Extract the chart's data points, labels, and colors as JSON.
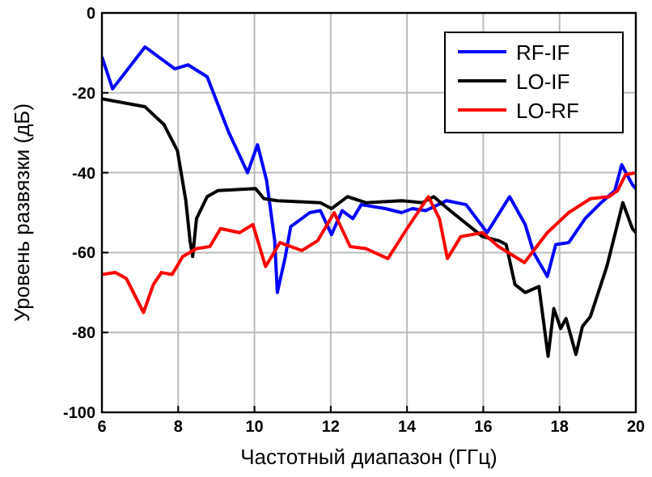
{
  "chart_data": {
    "type": "line",
    "xlabel": "Частотный диапазон (ГГц)",
    "ylabel": "Уровень развязки (дБ)",
    "xlim": [
      6,
      20
    ],
    "xticks": [
      6,
      8,
      10,
      12,
      14,
      16,
      18,
      20
    ],
    "ylim": [
      -100,
      0
    ],
    "yticks": [
      -100,
      -80,
      -60,
      -40,
      -20,
      0
    ],
    "grid": true,
    "legend": "top right",
    "series": [
      {
        "name": "RF-IF",
        "color": "#0000ff",
        "x": [
          6,
          6.28,
          7.13,
          7.91,
          8.26,
          8.76,
          9.33,
          9.82,
          10.08,
          10.32,
          10.53,
          10.6,
          10.81,
          10.95,
          11.45,
          11.73,
          12.02,
          12.3,
          12.58,
          12.8,
          13.43,
          13.86,
          14.14,
          14.49,
          15.04,
          15.55,
          16.1,
          16.69,
          17.1,
          17.32,
          17.68,
          17.9,
          18.24,
          18.67,
          19.09,
          19.45,
          19.63,
          19.91,
          20
        ],
        "values": [
          -11,
          -19,
          -8.5,
          -14,
          -13,
          -16,
          -30,
          -40,
          -33,
          -42,
          -57,
          -70,
          -61,
          -53.5,
          -50,
          -49.5,
          -55.5,
          -49.5,
          -51.5,
          -48,
          -49,
          -50,
          -49,
          -49.5,
          -47,
          -48,
          -55,
          -46,
          -53,
          -60,
          -66,
          -58,
          -57.5,
          -51.5,
          -47.5,
          -44.5,
          -38,
          -43,
          -44
        ]
      },
      {
        "name": "LO-IF",
        "color": "#000000",
        "x": [
          6,
          7.13,
          7.63,
          7.98,
          8.2,
          8.31,
          8.38,
          8.48,
          8.76,
          9.04,
          10.03,
          10.25,
          10.6,
          11.73,
          12.02,
          12.44,
          12.92,
          13.86,
          14.4,
          14.7,
          15.13,
          15.98,
          16.4,
          16.6,
          16.83,
          17.1,
          17.46,
          17.7,
          17.85,
          18.03,
          18.17,
          18.43,
          18.6,
          18.81,
          19.24,
          19.66,
          19.91,
          20
        ],
        "values": [
          -21.5,
          -23.5,
          -28,
          -34.5,
          -47,
          -57,
          -61,
          -51.5,
          -46,
          -44.5,
          -44,
          -46.5,
          -47,
          -47.5,
          -49,
          -46,
          -47.5,
          -47,
          -47.5,
          -46,
          -49.5,
          -56,
          -57,
          -58,
          -68,
          -70,
          -68.5,
          -86,
          -74,
          -79,
          -76.5,
          -85.5,
          -78.5,
          -76,
          -63.5,
          -47.5,
          -54,
          -55
        ]
      },
      {
        "name": "LO-RF",
        "color": "#ff0000",
        "x": [
          6,
          6.35,
          6.64,
          7.09,
          7.35,
          7.56,
          7.84,
          8.12,
          8.48,
          8.83,
          9.11,
          9.61,
          9.96,
          10.29,
          10.67,
          11.24,
          11.66,
          12.09,
          12.51,
          12.92,
          13.5,
          14,
          14.56,
          14.85,
          15.06,
          15.41,
          15.98,
          16.4,
          17.08,
          17.68,
          18.24,
          18.81,
          19.3,
          19.52,
          19.73,
          20
        ],
        "values": [
          -65.5,
          -65,
          -66.5,
          -75,
          -68,
          -65,
          -65.5,
          -61,
          -59,
          -58.5,
          -54,
          -55,
          -53,
          -63.5,
          -57.5,
          -59.5,
          -57,
          -50,
          -58.5,
          -59,
          -61.5,
          -54,
          -46,
          -51.5,
          -61.5,
          -56,
          -55,
          -58.5,
          -62.5,
          -55,
          -50,
          -46.5,
          -46,
          -44.5,
          -40.5,
          -40
        ]
      }
    ]
  }
}
